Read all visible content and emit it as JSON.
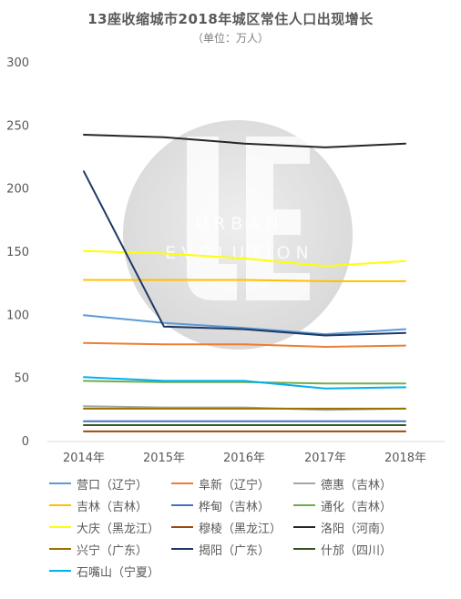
{
  "chart_data": {
    "type": "line",
    "title": "13座收缩城市2018年城区常住人口出现增长",
    "subtitle": "（单位：万人）",
    "x": [
      "2014年",
      "2015年",
      "2016年",
      "2017年",
      "2018年"
    ],
    "ylim": [
      0,
      300
    ],
    "yticks": [
      0,
      50,
      100,
      150,
      200,
      250,
      300
    ],
    "grid": false,
    "legend_position": "bottom",
    "watermark_text": "URBAN EVOLUTION",
    "series": [
      {
        "name": "营口（辽宁）",
        "color": "#5b9bd5",
        "values": [
          100,
          94,
          90,
          85,
          89
        ]
      },
      {
        "name": "阜新（辽宁）",
        "color": "#ed7d31",
        "values": [
          78,
          77,
          77,
          75,
          76
        ]
      },
      {
        "name": "德惠（吉林）",
        "color": "#a5a5a5",
        "values": [
          28,
          27,
          27,
          25,
          26
        ]
      },
      {
        "name": "吉林（吉林）",
        "color": "#ffc000",
        "values": [
          128,
          128,
          128,
          127,
          127
        ]
      },
      {
        "name": "桦甸（吉林）",
        "color": "#4472c4",
        "values": [
          16,
          16,
          16,
          16,
          16
        ]
      },
      {
        "name": "通化（吉林）",
        "color": "#70ad47",
        "values": [
          48,
          47,
          47,
          46,
          46
        ]
      },
      {
        "name": "大庆（黑龙江）",
        "color": "#ffff00",
        "values": [
          151,
          149,
          145,
          139,
          143
        ]
      },
      {
        "name": "穆棱（黑龙江）",
        "color": "#9e480e",
        "values": [
          8,
          8,
          8,
          8,
          8
        ]
      },
      {
        "name": "洛阳（河南）",
        "color": "#262626",
        "values": [
          243,
          241,
          236,
          233,
          236
        ]
      },
      {
        "name": "兴宁（广东）",
        "color": "#997300",
        "values": [
          26,
          26,
          26,
          26,
          26
        ]
      },
      {
        "name": "揭阳（广东）",
        "color": "#1f3864",
        "values": [
          214,
          91,
          89,
          84,
          86
        ]
      },
      {
        "name": "什邡（四川）",
        "color": "#375623",
        "values": [
          13,
          13,
          13,
          13,
          13
        ]
      },
      {
        "name": "石嘴山（宁夏）",
        "color": "#00b0f0",
        "values": [
          51,
          48,
          48,
          42,
          43
        ]
      }
    ]
  }
}
